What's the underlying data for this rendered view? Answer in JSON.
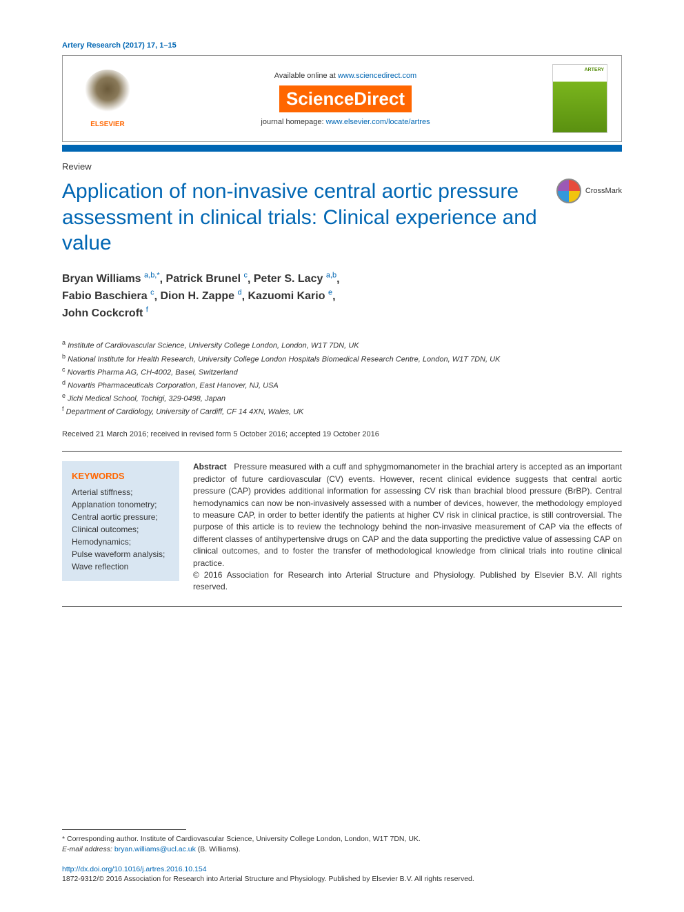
{
  "citation": "Artery Research (2017) 17, 1–15",
  "header": {
    "available_prefix": "Available online at ",
    "available_link": "www.sciencedirect.com",
    "brand": "ScienceDirect",
    "homepage_prefix": "journal homepage: ",
    "homepage_link": "www.elsevier.com/locate/artres",
    "elsevier_label": "ELSEVIER",
    "journal_cover_label": "ARTERY"
  },
  "article_type": "Review",
  "title": "Application of non-invasive central aortic pressure assessment in clinical trials: Clinical experience and value",
  "crossmark_label": "CrossMark",
  "authors": [
    {
      "name": "Bryan Williams",
      "marks": "a,b,*"
    },
    {
      "name": "Patrick Brunel",
      "marks": "c"
    },
    {
      "name": "Peter S. Lacy",
      "marks": "a,b"
    },
    {
      "name": "Fabio Baschiera",
      "marks": "c"
    },
    {
      "name": "Dion H. Zappe",
      "marks": "d"
    },
    {
      "name": "Kazuomi Kario",
      "marks": "e"
    },
    {
      "name": "John Cockcroft",
      "marks": "f"
    }
  ],
  "affiliations": [
    {
      "mark": "a",
      "text": "Institute of Cardiovascular Science, University College London, London, W1T 7DN, UK"
    },
    {
      "mark": "b",
      "text": "National Institute for Health Research, University College London Hospitals Biomedical Research Centre, London, W1T 7DN, UK"
    },
    {
      "mark": "c",
      "text": "Novartis Pharma AG, CH-4002, Basel, Switzerland"
    },
    {
      "mark": "d",
      "text": "Novartis Pharmaceuticals Corporation, East Hanover, NJ, USA"
    },
    {
      "mark": "e",
      "text": "Jichi Medical School, Tochigi, 329-0498, Japan"
    },
    {
      "mark": "f",
      "text": "Department of Cardiology, University of Cardiff, CF 14 4XN, Wales, UK"
    }
  ],
  "dates": "Received 21 March 2016; received in revised form 5 October 2016; accepted 19 October 2016",
  "keywords": {
    "heading": "KEYWORDS",
    "list": "Arterial stiffness;\nApplanation tonometry;\nCentral aortic pressure;\nClinical outcomes;\nHemodynamics;\nPulse waveform analysis;\nWave reflection"
  },
  "abstract": {
    "label": "Abstract",
    "body": "Pressure measured with a cuff and sphygmomanometer in the brachial artery is accepted as an important predictor of future cardiovascular (CV) events. However, recent clinical evidence suggests that central aortic pressure (CAP) provides additional information for assessing CV risk than brachial blood pressure (BrBP). Central hemodynamics can now be non-invasively assessed with a number of devices, however, the methodology employed to measure CAP, in order to better identify the patients at higher CV risk in clinical practice, is still controversial. The purpose of this article is to review the technology behind the non-invasive measurement of CAP via the effects of different classes of antihypertensive drugs on CAP and the data supporting the predictive value of assessing CAP on clinical outcomes, and to foster the transfer of methodological knowledge from clinical trials into routine clinical practice.",
    "copyright": "© 2016 Association for Research into Arterial Structure and Physiology. Published by Elsevier B.V. All rights reserved."
  },
  "corresponding": {
    "line1": "* Corresponding author. Institute of Cardiovascular Science, University College London, London, W1T 7DN, UK.",
    "email_label": "E-mail address: ",
    "email": "bryan.williams@ucl.ac.uk",
    "email_suffix": " (B. Williams)."
  },
  "doi": {
    "link": "http://dx.doi.org/10.1016/j.artres.2016.10.154",
    "issn_line": "1872-9312/© 2016 Association for Research into Arterial Structure and Physiology. Published by Elsevier B.V. All rights reserved."
  },
  "colors": {
    "primary_blue": "#0066b3",
    "orange": "#ff6600",
    "keywords_bg": "#d9e6f2",
    "journal_green": "#7ab51d"
  }
}
